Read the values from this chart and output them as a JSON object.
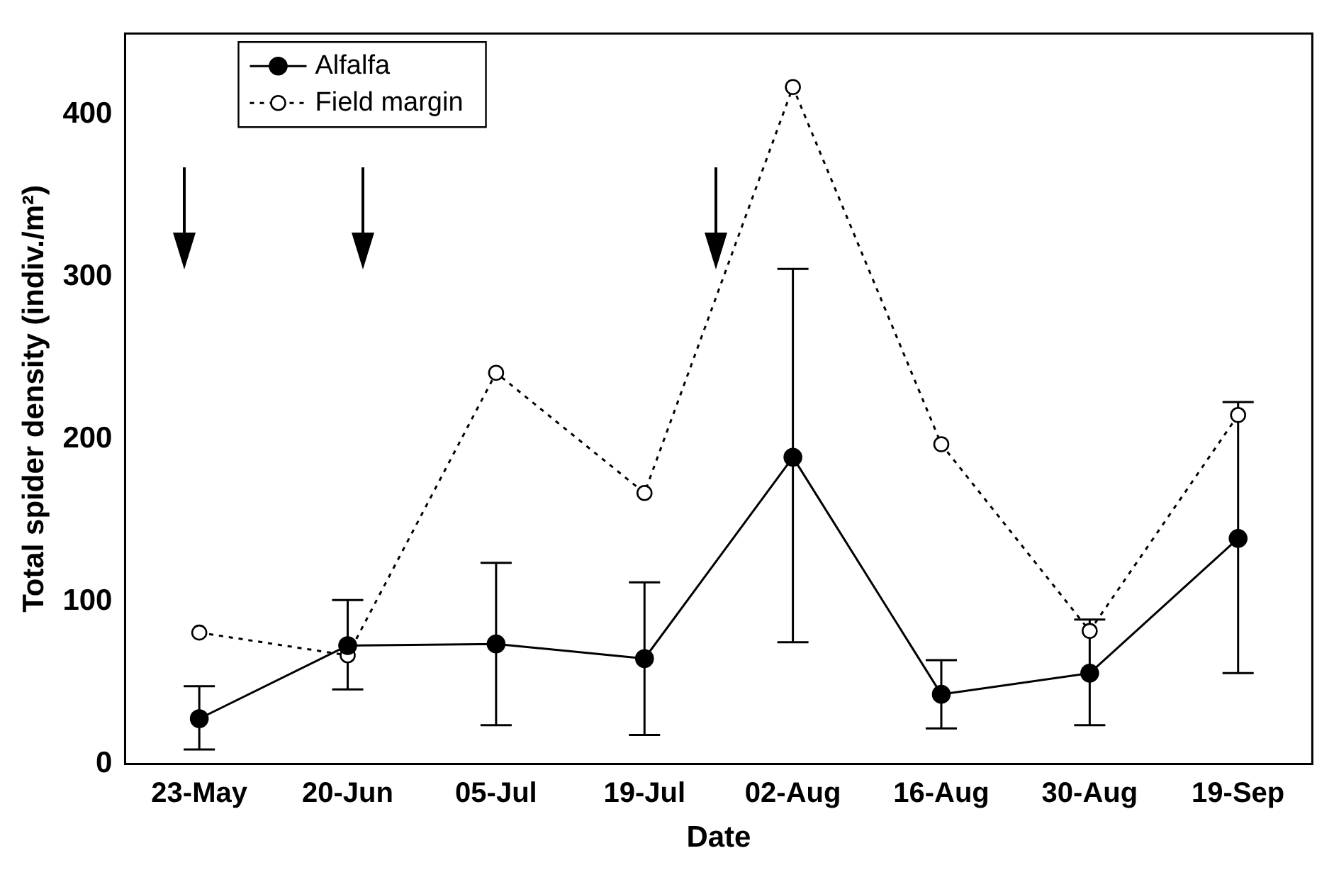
{
  "chart_data": {
    "type": "line",
    "xlabel": "Date",
    "ylabel": "Total spider density (indiv./m²)",
    "categories": [
      "23-May",
      "20-Jun",
      "05-Jul",
      "19-Jul",
      "02-Aug",
      "16-Aug",
      "30-Aug",
      "19-Sep"
    ],
    "series": [
      {
        "name": "Alfalfa",
        "color": "#000000",
        "line_style": "solid",
        "values": [
          28,
          73,
          74,
          65,
          189,
          43,
          56,
          139
        ],
        "errors": [
          [
            9,
            48
          ],
          [
            46,
            101
          ],
          [
            24,
            124
          ],
          [
            18,
            112
          ],
          [
            75,
            305
          ],
          [
            22,
            64
          ],
          [
            24,
            89
          ],
          [
            56,
            223
          ]
        ]
      },
      {
        "name": "Field margin",
        "color": "#000000",
        "line_style": "dotted",
        "values": [
          81,
          67,
          241,
          167,
          417,
          197,
          82,
          215
        ]
      }
    ],
    "ylim": [
      0,
      450
    ],
    "yticks": [
      0,
      100,
      200,
      300,
      400
    ],
    "grid": false,
    "legend": "top left",
    "marker": "circle"
  }
}
